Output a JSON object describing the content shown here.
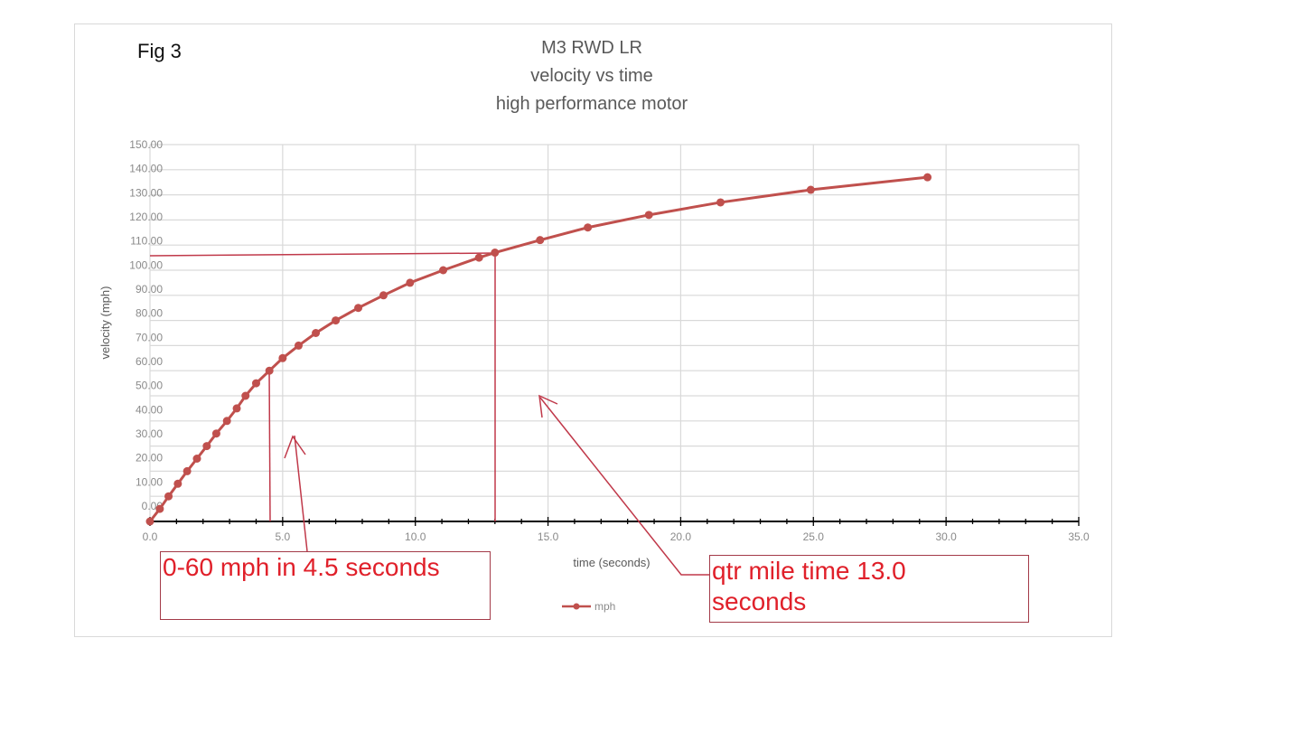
{
  "figure": {
    "label": "Fig 3",
    "title_lines": [
      "M3 RWD LR",
      "velocity vs time",
      "high performance motor"
    ]
  },
  "annotations": {
    "zero_to_sixty": "0-60 mph in 4.5 seconds",
    "qtr_mile_line1": "qtr mile time 13.0",
    "qtr_mile_line2": "seconds"
  },
  "legend": {
    "label": "mph"
  },
  "colors": {
    "series": "#c0504d",
    "annotation_line": "#c0394a",
    "annotation_text": "#e0202a",
    "grid": "#d9d9d9",
    "axis": "#000000"
  },
  "chart_data": {
    "type": "line",
    "title": "M3 RWD LR velocity vs time high performance motor",
    "xlabel": "time (seconds)",
    "ylabel": "velocity (mph)",
    "xlim": [
      0,
      35
    ],
    "ylim": [
      0,
      150
    ],
    "x_ticks": [
      "0.0",
      "5.0",
      "10.0",
      "15.0",
      "20.0",
      "25.0",
      "30.0",
      "35.0"
    ],
    "y_ticks": [
      "0.00",
      "10.00",
      "20.00",
      "30.00",
      "40.00",
      "50.00",
      "60.00",
      "70.00",
      "80.00",
      "90.00",
      "100.00",
      "110.00",
      "120.00",
      "130.00",
      "140.00",
      "150.00"
    ],
    "grid": true,
    "legend_position": "bottom",
    "series": [
      {
        "name": "mph",
        "x": [
          0,
          0.37,
          0.7,
          1.05,
          1.4,
          1.77,
          2.14,
          2.5,
          2.9,
          3.27,
          3.6,
          4.0,
          4.5,
          5.0,
          5.6,
          6.25,
          7.0,
          7.85,
          8.8,
          9.8,
          11.05,
          12.4,
          13.0,
          14.7,
          16.5,
          18.8,
          21.5,
          24.9,
          29.3
        ],
        "values": [
          0,
          5,
          10,
          15,
          20,
          25,
          30,
          35,
          40,
          45,
          50,
          55,
          60,
          65,
          70,
          75,
          80,
          85,
          90,
          95,
          100,
          105,
          107,
          112,
          117,
          122,
          127,
          132,
          137
        ]
      }
    ],
    "annotations": [
      {
        "text": "0-60 mph in 4.5 seconds",
        "x": 4.5,
        "y": 60
      },
      {
        "text": "qtr mile time 13.0 seconds",
        "x": 13.0,
        "y": 106
      }
    ]
  }
}
